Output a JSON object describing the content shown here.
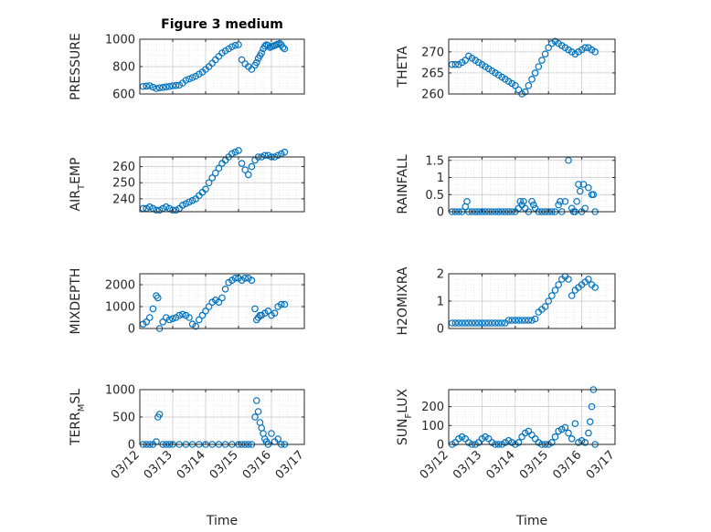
{
  "chart_data": [
    {
      "type": "scatter",
      "title": "Figure 3 medium",
      "ylabel": "PRESSURE",
      "ylim": [
        600,
        1000
      ],
      "yticks": [
        "600",
        "800",
        "1000"
      ],
      "xlim": [
        0,
        5
      ],
      "xticks": [
        "03/12",
        "03/13",
        "03/14",
        "03/15",
        "03/16",
        "03/17"
      ],
      "show_xtick_labels": false,
      "xlabel": "",
      "grid": true,
      "color": "#0072BD",
      "series": [
        {
          "x": [
            0.1,
            0.2,
            0.3,
            0.4,
            0.5,
            0.6,
            0.7,
            0.8,
            0.9,
            1.0,
            1.1,
            1.2,
            1.3,
            1.4,
            1.5,
            1.6,
            1.7,
            1.8,
            1.9,
            2.0,
            2.1,
            2.2,
            2.3,
            2.4,
            2.5,
            2.6,
            2.7,
            2.8,
            2.9,
            3.0,
            3.1,
            3.2,
            3.3,
            3.4,
            3.5,
            3.55,
            3.6,
            3.65,
            3.7,
            3.75,
            3.8,
            3.85,
            3.9,
            3.95,
            4.0,
            4.05,
            4.1,
            4.15,
            4.2,
            4.25,
            4.3,
            4.35,
            4.4
          ],
          "y": [
            655,
            658,
            660,
            650,
            640,
            645,
            648,
            652,
            655,
            660,
            662,
            665,
            680,
            700,
            710,
            720,
            730,
            745,
            760,
            780,
            800,
            825,
            850,
            875,
            900,
            915,
            930,
            945,
            955,
            960,
            850,
            820,
            800,
            780,
            810,
            830,
            860,
            880,
            900,
            930,
            950,
            960,
            955,
            940,
            945,
            950,
            955,
            960,
            965,
            970,
            960,
            940,
            930
          ]
        }
      ]
    },
    {
      "type": "scatter",
      "title": "",
      "ylabel": "THETA",
      "ylim": [
        260,
        273
      ],
      "yticks": [
        "260",
        "265",
        "270"
      ],
      "xlim": [
        0,
        5
      ],
      "xticks": [
        "03/12",
        "03/13",
        "03/14",
        "03/15",
        "03/16",
        "03/17"
      ],
      "show_xtick_labels": false,
      "xlabel": "",
      "grid": true,
      "color": "#0072BD",
      "series": [
        {
          "x": [
            0.1,
            0.2,
            0.3,
            0.4,
            0.5,
            0.6,
            0.7,
            0.8,
            0.9,
            1.0,
            1.1,
            1.2,
            1.3,
            1.4,
            1.5,
            1.6,
            1.7,
            1.8,
            1.9,
            2.0,
            2.1,
            2.2,
            2.3,
            2.4,
            2.5,
            2.6,
            2.7,
            2.8,
            2.9,
            3.0,
            3.1,
            3.2,
            3.3,
            3.4,
            3.5,
            3.6,
            3.7,
            3.8,
            3.9,
            4.0,
            4.1,
            4.2,
            4.3,
            4.4
          ],
          "y": [
            267,
            267,
            267,
            267.5,
            268,
            269,
            268.5,
            268,
            267.5,
            267,
            266.5,
            266,
            265.5,
            265,
            264.5,
            264,
            263.5,
            263,
            262.5,
            262,
            261,
            260,
            260.5,
            262,
            263.5,
            265,
            266.5,
            268,
            269.5,
            271,
            272,
            272.5,
            272,
            271.5,
            271,
            270.5,
            270,
            269.5,
            270,
            270.5,
            271,
            271,
            270.5,
            270
          ]
        }
      ]
    },
    {
      "type": "scatter",
      "title": "",
      "ylabel": "AIR_TEMP",
      "ylim": [
        232,
        266
      ],
      "yticks": [
        "240",
        "250",
        "260"
      ],
      "xlim": [
        0,
        5
      ],
      "xticks": [
        "03/12",
        "03/13",
        "03/14",
        "03/15",
        "03/16",
        "03/17"
      ],
      "show_xtick_labels": false,
      "xlabel": "",
      "grid": true,
      "color": "#0072BD",
      "series": [
        {
          "x": [
            0.1,
            0.2,
            0.3,
            0.4,
            0.5,
            0.6,
            0.7,
            0.8,
            0.9,
            1.0,
            1.1,
            1.2,
            1.3,
            1.4,
            1.5,
            1.6,
            1.7,
            1.8,
            1.9,
            2.0,
            2.1,
            2.2,
            2.3,
            2.4,
            2.5,
            2.6,
            2.7,
            2.8,
            2.9,
            3.0,
            3.1,
            3.2,
            3.3,
            3.4,
            3.5,
            3.6,
            3.7,
            3.8,
            3.9,
            4.0,
            4.1,
            4.2,
            4.3,
            4.4
          ],
          "y": [
            234,
            234,
            235,
            234,
            233,
            233,
            234,
            235,
            234,
            233,
            233,
            234,
            236,
            237,
            238,
            239,
            240,
            242,
            244,
            246,
            250,
            253,
            256,
            259,
            262,
            264,
            266,
            268,
            269,
            270,
            262,
            258,
            255,
            260,
            264,
            266,
            266,
            267,
            267,
            266,
            266,
            267,
            268,
            269
          ]
        }
      ]
    },
    {
      "type": "scatter",
      "title": "",
      "ylabel": "RAINFALL",
      "ylim": [
        0,
        1.6
      ],
      "yticks": [
        "0",
        "0.5",
        "1",
        "1.5"
      ],
      "xlim": [
        0,
        5
      ],
      "xticks": [
        "03/12",
        "03/13",
        "03/14",
        "03/15",
        "03/16",
        "03/17"
      ],
      "show_xtick_labels": false,
      "xlabel": "",
      "grid": true,
      "color": "#0072BD",
      "series": [
        {
          "x": [
            0.1,
            0.2,
            0.3,
            0.4,
            0.5,
            0.55,
            0.6,
            0.7,
            0.8,
            0.9,
            1.0,
            1.1,
            1.2,
            1.3,
            1.4,
            1.5,
            1.6,
            1.7,
            1.8,
            1.9,
            2.0,
            2.1,
            2.15,
            2.2,
            2.25,
            2.3,
            2.4,
            2.5,
            2.55,
            2.6,
            2.7,
            2.8,
            2.9,
            3.0,
            3.1,
            3.2,
            3.3,
            3.35,
            3.4,
            3.5,
            3.6,
            3.7,
            3.75,
            3.8,
            3.85,
            3.9,
            3.95,
            4.0,
            4.05,
            4.1,
            4.2,
            4.3,
            4.35,
            4.4
          ],
          "y": [
            0,
            0,
            0,
            0,
            0.15,
            0.3,
            0,
            0,
            0,
            0,
            0,
            0,
            0,
            0,
            0,
            0,
            0,
            0,
            0,
            0,
            0,
            0.1,
            0.3,
            0.2,
            0.3,
            0.1,
            0,
            0.3,
            0.2,
            0.1,
            0,
            0,
            0,
            0,
            0,
            0,
            0.2,
            0.3,
            0,
            0.3,
            1.5,
            0.1,
            0,
            0,
            0.3,
            0.8,
            0.6,
            0,
            0.8,
            0.1,
            0.7,
            0.5,
            0.5,
            0
          ]
        }
      ]
    },
    {
      "type": "scatter",
      "title": "",
      "ylabel": "MIXDEPTH",
      "ylim": [
        0,
        2500
      ],
      "yticks": [
        "0",
        "1000",
        "2000"
      ],
      "xlim": [
        0,
        5
      ],
      "xticks": [
        "03/12",
        "03/13",
        "03/14",
        "03/15",
        "03/16",
        "03/17"
      ],
      "show_xtick_labels": false,
      "xlabel": "",
      "grid": true,
      "color": "#0072BD",
      "series": [
        {
          "x": [
            0.1,
            0.2,
            0.3,
            0.4,
            0.5,
            0.55,
            0.6,
            0.7,
            0.8,
            0.9,
            1.0,
            1.1,
            1.2,
            1.3,
            1.4,
            1.5,
            1.6,
            1.7,
            1.8,
            1.9,
            2.0,
            2.1,
            2.2,
            2.3,
            2.4,
            2.5,
            2.6,
            2.7,
            2.8,
            2.9,
            3.0,
            3.1,
            3.2,
            3.3,
            3.4,
            3.5,
            3.55,
            3.6,
            3.65,
            3.7,
            3.8,
            3.9,
            4.0,
            4.1,
            4.2,
            4.3,
            4.4
          ],
          "y": [
            200,
            300,
            500,
            900,
            1500,
            1400,
            0,
            300,
            500,
            400,
            450,
            500,
            600,
            650,
            600,
            500,
            200,
            100,
            400,
            600,
            800,
            1000,
            1200,
            1300,
            1200,
            1400,
            1800,
            2100,
            2200,
            2300,
            2300,
            2200,
            2300,
            2300,
            2200,
            900,
            400,
            500,
            600,
            600,
            700,
            800,
            600,
            700,
            1000,
            1100,
            1100
          ]
        }
      ]
    },
    {
      "type": "scatter",
      "title": "",
      "ylabel": "H2OMIXRA",
      "ylim": [
        0,
        2
      ],
      "yticks": [
        "0",
        "1",
        "2"
      ],
      "xlim": [
        0,
        5
      ],
      "xticks": [
        "03/12",
        "03/13",
        "03/14",
        "03/15",
        "03/16",
        "03/17"
      ],
      "show_xtick_labels": false,
      "xlabel": "",
      "grid": true,
      "color": "#0072BD",
      "series": [
        {
          "x": [
            0.1,
            0.2,
            0.3,
            0.4,
            0.5,
            0.6,
            0.7,
            0.8,
            0.9,
            1.0,
            1.1,
            1.2,
            1.3,
            1.4,
            1.5,
            1.6,
            1.7,
            1.8,
            1.9,
            2.0,
            2.1,
            2.2,
            2.3,
            2.4,
            2.5,
            2.6,
            2.7,
            2.8,
            2.9,
            3.0,
            3.1,
            3.2,
            3.3,
            3.4,
            3.5,
            3.6,
            3.7,
            3.8,
            3.9,
            4.0,
            4.1,
            4.2,
            4.3,
            4.4
          ],
          "y": [
            0.2,
            0.2,
            0.2,
            0.2,
            0.2,
            0.2,
            0.2,
            0.2,
            0.2,
            0.2,
            0.2,
            0.2,
            0.2,
            0.2,
            0.2,
            0.2,
            0.2,
            0.3,
            0.3,
            0.3,
            0.3,
            0.3,
            0.3,
            0.3,
            0.3,
            0.35,
            0.6,
            0.7,
            0.8,
            1.0,
            1.2,
            1.4,
            1.6,
            1.8,
            1.9,
            1.8,
            1.2,
            1.4,
            1.5,
            1.6,
            1.7,
            1.8,
            1.6,
            1.5
          ]
        }
      ]
    },
    {
      "type": "scatter",
      "title": "",
      "ylabel": "TERR_MSL",
      "ylim": [
        0,
        1000
      ],
      "yticks": [
        "0",
        "500",
        "1000"
      ],
      "xlim": [
        0,
        5
      ],
      "xticks": [
        "03/12",
        "03/13",
        "03/14",
        "03/15",
        "03/16",
        "03/17"
      ],
      "show_xtick_labels": true,
      "xlabel": "Time",
      "grid": true,
      "color": "#0072BD",
      "series": [
        {
          "x": [
            0.1,
            0.2,
            0.3,
            0.4,
            0.5,
            0.55,
            0.6,
            0.7,
            0.8,
            0.9,
            1.0,
            1.2,
            1.4,
            1.6,
            1.8,
            2.0,
            2.2,
            2.4,
            2.6,
            2.8,
            3.0,
            3.1,
            3.2,
            3.3,
            3.4,
            3.5,
            3.55,
            3.6,
            3.65,
            3.7,
            3.75,
            3.8,
            3.85,
            3.9,
            4.0,
            4.1,
            4.2,
            4.3,
            4.4
          ],
          "y": [
            0,
            0,
            0,
            0,
            50,
            500,
            550,
            0,
            0,
            0,
            0,
            0,
            0,
            0,
            0,
            0,
            0,
            0,
            0,
            0,
            0,
            0,
            0,
            0,
            0,
            500,
            800,
            600,
            400,
            300,
            200,
            100,
            50,
            0,
            200,
            50,
            100,
            0,
            0
          ]
        }
      ]
    },
    {
      "type": "scatter",
      "title": "",
      "ylabel": "SUN_FLUX",
      "ylim": [
        0,
        290
      ],
      "yticks": [
        "0",
        "100",
        "200"
      ],
      "xlim": [
        0,
        5
      ],
      "xticks": [
        "03/12",
        "03/13",
        "03/14",
        "03/15",
        "03/16",
        "03/17"
      ],
      "show_xtick_labels": true,
      "xlabel": "Time",
      "grid": true,
      "color": "#0072BD",
      "series": [
        {
          "x": [
            0.1,
            0.2,
            0.3,
            0.4,
            0.5,
            0.6,
            0.7,
            0.8,
            0.9,
            1.0,
            1.1,
            1.2,
            1.3,
            1.4,
            1.5,
            1.6,
            1.7,
            1.8,
            1.9,
            2.0,
            2.1,
            2.2,
            2.3,
            2.4,
            2.5,
            2.6,
            2.7,
            2.8,
            2.9,
            3.0,
            3.1,
            3.2,
            3.3,
            3.4,
            3.5,
            3.6,
            3.7,
            3.8,
            3.9,
            4.0,
            4.1,
            4.2,
            4.25,
            4.3,
            4.35,
            4.4
          ],
          "y": [
            0,
            10,
            30,
            40,
            30,
            10,
            0,
            0,
            10,
            30,
            40,
            30,
            10,
            0,
            0,
            0,
            10,
            20,
            10,
            0,
            10,
            40,
            60,
            70,
            50,
            30,
            10,
            0,
            0,
            0,
            10,
            40,
            70,
            80,
            90,
            60,
            30,
            110,
            10,
            20,
            10,
            60,
            120,
            200,
            290,
            0
          ]
        }
      ]
    }
  ]
}
